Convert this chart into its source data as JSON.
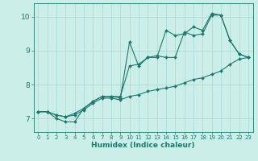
{
  "xlabel": "Humidex (Indice chaleur)",
  "bg_color": "#cceee8",
  "line_color": "#1a7a6e",
  "grid_color": "#aaddda",
  "xlim": [
    -0.5,
    23.5
  ],
  "ylim": [
    6.6,
    10.4
  ],
  "xticks": [
    0,
    1,
    2,
    3,
    4,
    5,
    6,
    7,
    8,
    9,
    10,
    11,
    12,
    13,
    14,
    15,
    16,
    17,
    18,
    19,
    20,
    21,
    22,
    23
  ],
  "yticks": [
    7,
    8,
    9,
    10
  ],
  "series": [
    [
      7.2,
      7.2,
      7.0,
      6.9,
      6.9,
      7.3,
      7.5,
      7.65,
      7.65,
      7.6,
      9.25,
      8.55,
      8.8,
      8.8,
      9.6,
      9.45,
      9.5,
      9.7,
      9.6,
      10.1,
      10.05,
      9.3,
      8.9,
      8.8
    ],
    [
      7.2,
      7.2,
      7.1,
      7.05,
      7.15,
      7.3,
      7.5,
      7.65,
      7.65,
      7.65,
      8.55,
      8.6,
      8.8,
      8.85,
      8.8,
      8.8,
      9.55,
      9.45,
      9.5,
      10.05,
      10.05,
      9.3,
      8.9,
      8.8
    ],
    [
      7.2,
      7.2,
      7.1,
      7.05,
      7.1,
      7.25,
      7.45,
      7.6,
      7.6,
      7.55,
      7.65,
      7.7,
      7.8,
      7.85,
      7.9,
      7.95,
      8.05,
      8.15,
      8.2,
      8.3,
      8.4,
      8.6,
      8.75,
      8.8
    ]
  ]
}
